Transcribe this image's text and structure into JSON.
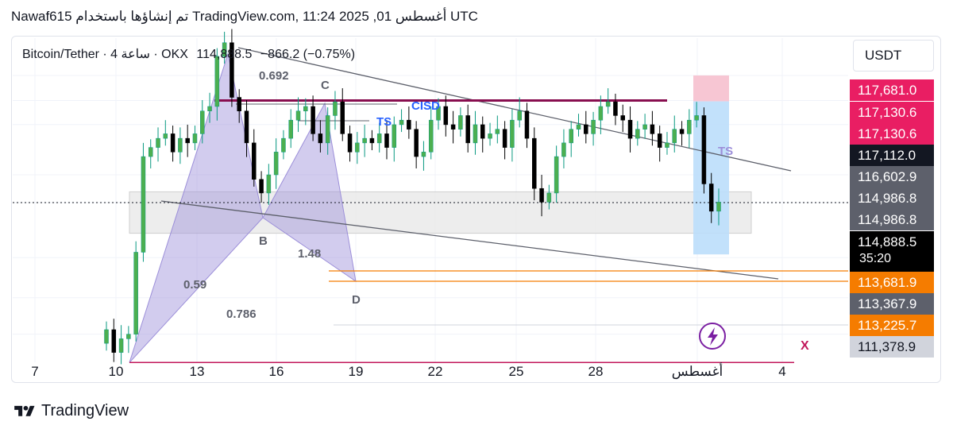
{
  "header": {
    "text": "Nawaf615 تم إنشاؤها باستخدام TradingView.com, 11:24 2025 ,01 أغسطس UTC"
  },
  "symbol": {
    "name": "Bitcoin/Tether · 4 ساعة · OKX",
    "price": "114,888.5",
    "change": "−866.2 (−0.75%)"
  },
  "currency": "USDT",
  "price_labels": [
    {
      "text": "117,681.0",
      "color": "#e91e63",
      "value": 117681.0
    },
    {
      "text": "117,130.6",
      "color": "#e91e63",
      "value": 117130.6
    },
    {
      "text": "117,130.6",
      "color": "#e91e63",
      "value": 117130.6
    },
    {
      "text": "117,112.0",
      "color": "#131722",
      "value": 117112.0
    },
    {
      "text": "116,602.9",
      "color": "#5d606b",
      "value": 116602.9
    },
    {
      "text": "114,986.8",
      "color": "#5d606b",
      "value": 114986.8
    },
    {
      "text": "114,986.8",
      "color": "#5d606b",
      "value": 114986.8
    },
    {
      "text": "114,888.5",
      "color": "#000000",
      "value": 114888.5
    },
    {
      "text": "113,681.9",
      "color": "#f57c00",
      "value": 113681.9
    },
    {
      "text": "113,367.9",
      "color": "#5d606b",
      "value": 113367.9
    },
    {
      "text": "113,225.7",
      "color": "#f57c00",
      "value": 113225.7
    },
    {
      "text": "111,378.9",
      "color": "#d1d4dc",
      "value": 111378.9
    }
  ],
  "timer": "35:20",
  "annotations": {
    "fib_0692": "0.692",
    "label_c": "C",
    "cisd": "CISD",
    "ts_left": "TS",
    "ts_right": "TS",
    "label_b": "B",
    "fib_148": "1.48",
    "fib_059": "0.59",
    "fib_0786": "0.786",
    "label_d": "D",
    "label_x": "X"
  },
  "footer": {
    "brand": "TradingView"
  },
  "colors": {
    "up": "#089981",
    "down": "#000000",
    "up_fill": "#4caf50",
    "harmonic": "#9c8fd9",
    "resistance": "#880e4f",
    "orange": "#f57c00",
    "x_line": "#c2185b",
    "ts_blue": "#2962ff"
  },
  "chart_data": {
    "type": "candlestick",
    "title": "Bitcoin/Tether · 4 ساعة · OKX",
    "x_ticks": [
      "7",
      "10",
      "13",
      "16",
      "19",
      "22",
      "25",
      "28",
      "أغسطس",
      "4"
    ],
    "y_unit": "USDT",
    "ylim": [
      111000,
      118500
    ],
    "last_price": 114888.5,
    "levels": {
      "resistance": 117130.6,
      "ts_top": 117681.0,
      "ts_bottom": 117112.0,
      "support_zone_top": 114986.8,
      "support_zone_bottom": 114600.0,
      "orange_1": 113681.9,
      "orange_2": 113367.9,
      "gray": 113225.7,
      "x_level": 111378.9
    },
    "series": [
      {
        "name": "BTC/USDT 4h close",
        "values": [
          112100,
          111600,
          111900,
          112000,
          113800,
          115900,
          116100,
          116300,
          116400,
          116000,
          116300,
          116200,
          116400,
          116900,
          117000,
          118100,
          118400,
          117200,
          116900,
          116200,
          115400,
          115100,
          115500,
          116000,
          116300,
          116700,
          116900,
          117000,
          116400,
          116200,
          116800,
          117100,
          116400,
          116000,
          116200,
          116300,
          116200,
          116400,
          116100,
          116600,
          116700,
          116500,
          115900,
          116000,
          116700,
          117000,
          116600,
          116500,
          116800,
          116200,
          116600,
          116300,
          116400,
          116500,
          116100,
          116700,
          116900,
          116300,
          115200,
          114900,
          115100,
          115900,
          116200,
          116500,
          116600,
          116400,
          116700,
          117000,
          117100,
          116800,
          116700,
          116300,
          116500,
          116600,
          116400,
          116100,
          116200,
          116500,
          116400,
          116700,
          116800,
          115300,
          114700,
          114900
        ]
      }
    ]
  }
}
